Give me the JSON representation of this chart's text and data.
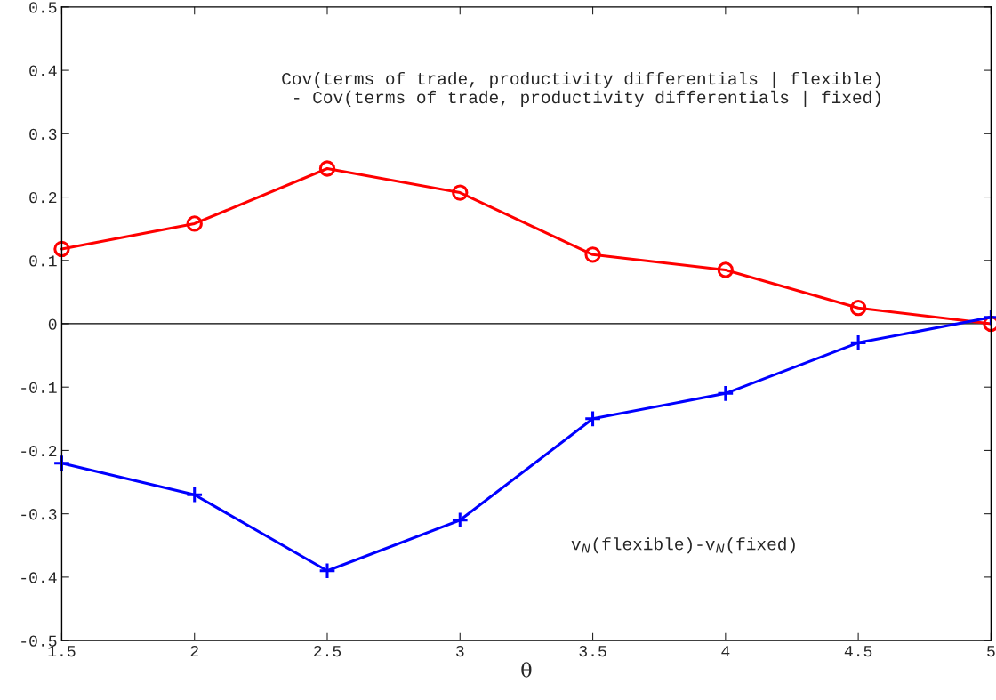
{
  "chart_data": {
    "type": "line",
    "xlabel": "θ",
    "x": [
      1.5,
      2,
      2.5,
      3,
      3.5,
      4,
      4.5,
      5
    ],
    "series": [
      {
        "color": "#ff0000",
        "marker": "circle",
        "values": [
          0.118,
          0.158,
          0.245,
          0.207,
          0.109,
          0.085,
          0.025,
          0.0
        ]
      },
      {
        "color": "#0000ff",
        "marker": "cross",
        "values": [
          -0.22,
          -0.27,
          -0.39,
          -0.31,
          -0.15,
          -0.11,
          -0.03,
          0.01
        ]
      }
    ],
    "xlim": [
      1.5,
      5
    ],
    "xticks": [
      1.5,
      2,
      2.5,
      3,
      3.5,
      4,
      4.5,
      5
    ],
    "ylim": [
      -0.5,
      0.5
    ],
    "yticks": [
      -0.5,
      -0.4,
      -0.3,
      -0.2,
      -0.1,
      0,
      0.1,
      0.2,
      0.3,
      0.4,
      0.5
    ],
    "ref_lines": [
      {
        "axis": "y",
        "value": 0,
        "color": "#000000"
      }
    ],
    "annotations": [
      "Cov(terms of trade, productivity differentials | flexible)\n - Cov(terms of trade, productivity differentials | fixed)",
      "v$_{N}$(flexible)-v$_{N}$(fixed)"
    ],
    "grid": false,
    "legend": false,
    "line_style": "solid"
  }
}
